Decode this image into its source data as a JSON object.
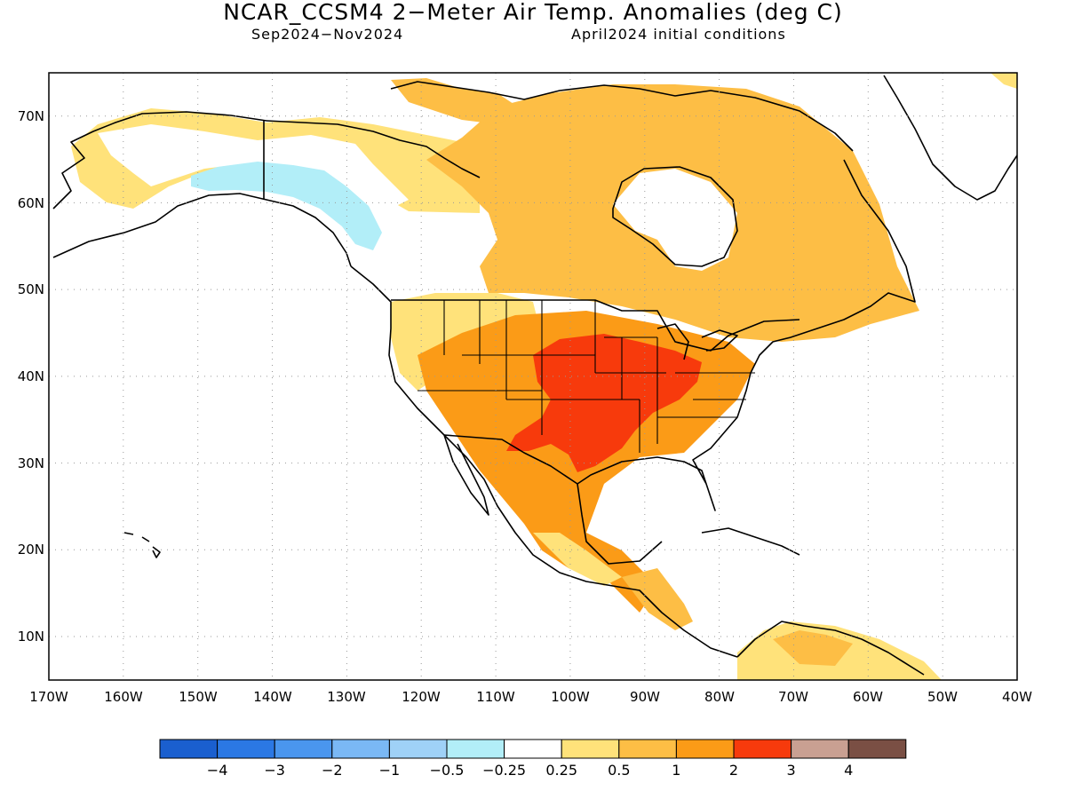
{
  "title": "NCAR_CCSM4 2−Meter Air Temp. Anomalies (deg C)",
  "subtitle_left": "Sep2024−Nov2024",
  "subtitle_right": "April2024 initial conditions",
  "map": {
    "lon_range": [
      -170,
      -40
    ],
    "lat_range": [
      5,
      75
    ],
    "lat_labels": [
      "10N",
      "20N",
      "30N",
      "40N",
      "50N",
      "60N",
      "70N"
    ],
    "lon_labels": [
      "170W",
      "160W",
      "150W",
      "140W",
      "130W",
      "120W",
      "110W",
      "100W",
      "90W",
      "80W",
      "70W",
      "60W",
      "50W",
      "40W"
    ]
  },
  "colorbar": {
    "colors": [
      "#1a5fcf",
      "#2b78e4",
      "#4a96ee",
      "#7ab8f5",
      "#9fd1f7",
      "#b2eef8",
      "#ffffff",
      "#ffe27a",
      "#fdbe45",
      "#fb9b17",
      "#f73a0c",
      "#c9a092",
      "#7a4f44"
    ],
    "labels": [
      "−4",
      "−3",
      "−2",
      "−1",
      "−0.5",
      "−0.25",
      "0.25",
      "0.5",
      "1",
      "2",
      "3",
      "4"
    ]
  }
}
